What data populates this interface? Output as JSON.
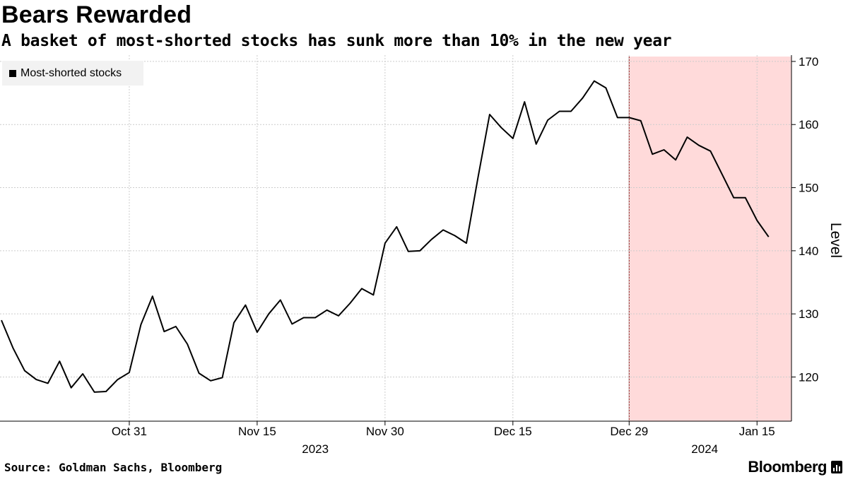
{
  "title": "Bears Rewarded",
  "subtitle": "A basket of most-shorted stocks has sunk more than 10% in the new year",
  "source": "Source: Goldman Sachs, Bloomberg",
  "brand": "Bloomberg",
  "colors": {
    "line": "#000000",
    "shade_fill": "#ffdada",
    "shade_edge": "#8b1a1a",
    "grid": "#cccccc"
  },
  "chart_data": {
    "type": "line",
    "title": "Bears Rewarded",
    "ylabel": "Level",
    "ylim": [
      113,
      171
    ],
    "yticks": [
      120,
      130,
      140,
      150,
      160,
      170
    ],
    "grid": true,
    "legend": {
      "position": "top-left",
      "entries": [
        "Most-shorted stocks"
      ]
    },
    "x_ticks": [
      "Oct 31",
      "Nov 15",
      "Nov 30",
      "Dec 15",
      "Dec 29",
      "Jan 15"
    ],
    "x_tick_index": [
      11,
      22,
      33,
      44,
      54,
      65
    ],
    "year_labels": [
      {
        "label": "2023",
        "index": 27
      },
      {
        "label": "2024",
        "index": 60.5
      }
    ],
    "shaded_region": {
      "label": "new year",
      "start_index": 54,
      "end_index": 72
    },
    "series": [
      {
        "name": "Most-shorted stocks",
        "values": [
          129.0,
          124.6,
          121.0,
          119.6,
          119.0,
          122.5,
          118.3,
          120.5,
          117.6,
          117.7,
          119.6,
          120.7,
          128.3,
          132.8,
          127.2,
          128.0,
          125.2,
          120.6,
          119.4,
          119.9,
          128.6,
          131.4,
          127.1,
          130.0,
          132.2,
          128.4,
          129.4,
          129.4,
          130.6,
          129.7,
          131.7,
          134.0,
          133.0,
          141.2,
          143.8,
          139.9,
          140.0,
          141.8,
          143.3,
          142.4,
          141.2,
          151.6,
          161.6,
          159.5,
          157.8,
          163.6,
          156.9,
          160.7,
          162.1,
          162.1,
          164.2,
          166.9,
          165.8,
          161.1,
          161.1,
          160.6,
          155.3,
          156.0,
          154.4,
          158.0,
          156.7,
          155.8,
          152.1,
          148.4,
          148.4,
          144.8,
          142.2
        ]
      }
    ]
  }
}
